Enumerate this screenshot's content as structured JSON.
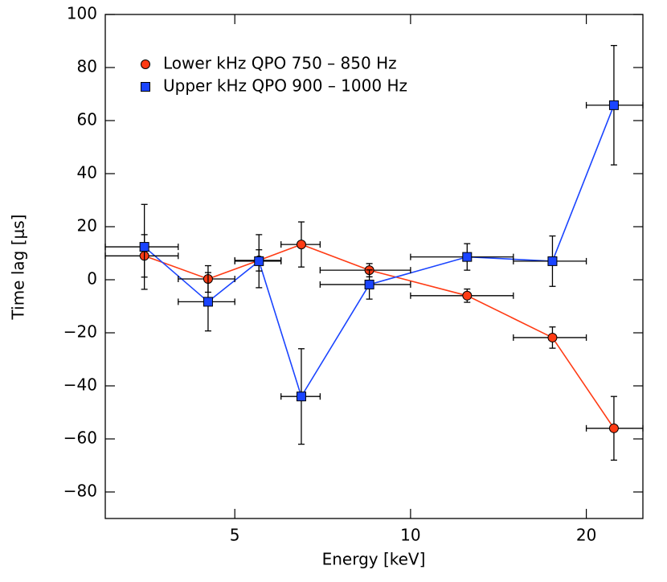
{
  "chart_data": {
    "type": "line",
    "xlabel": "Energy [keV]",
    "ylabel": "Time lag [μs]",
    "xscale": "log",
    "xlim": [
      3,
      25
    ],
    "xticks": [
      5,
      10,
      20
    ],
    "ylim": [
      -90,
      100
    ],
    "yticks": [
      {
        "value": -80,
        "label": "−80"
      },
      {
        "value": -60,
        "label": "−60"
      },
      {
        "value": -40,
        "label": "−40"
      },
      {
        "value": -20,
        "label": "−20"
      },
      0,
      20,
      40,
      60,
      80,
      100
    ],
    "legend": "upper-left",
    "x": [
      3.5,
      4.5,
      5.5,
      6.5,
      8.5,
      12.5,
      17.5,
      22.3
    ],
    "x_low": [
      3,
      4,
      5,
      6,
      7,
      10,
      15,
      20
    ],
    "x_high": [
      4,
      5,
      6,
      7,
      10,
      15,
      20,
      25
    ],
    "series": [
      {
        "name": "Lower kHz QPO 750 – 850 Hz",
        "color": "#ff3b14",
        "marker": "circle",
        "values": [
          9,
          0.3,
          7.3,
          13.3,
          3.6,
          -6,
          -21.8,
          -56
        ],
        "errors": [
          8,
          5,
          4,
          8.5,
          2.5,
          2.5,
          4,
          12
        ]
      },
      {
        "name": "Upper kHz QPO 900 – 1000 Hz",
        "color": "#1a44ff",
        "marker": "square",
        "values": [
          12.4,
          -8.3,
          7,
          -44,
          -1.8,
          8.6,
          7,
          65.8
        ],
        "errors": [
          16,
          11,
          10,
          18,
          5.5,
          5,
          9.5,
          22.5
        ]
      }
    ]
  }
}
